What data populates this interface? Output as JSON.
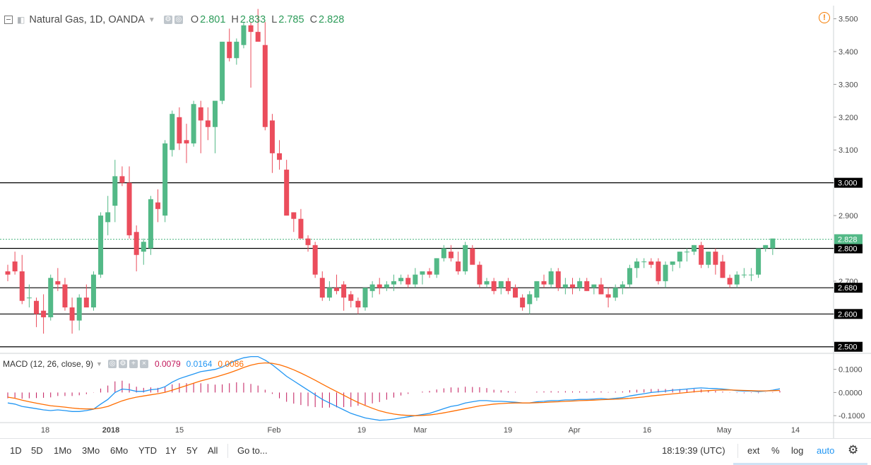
{
  "header": {
    "symbol": "Natural Gas, 1D, OANDA",
    "open_label": "O",
    "open": "2.801",
    "high_label": "H",
    "high": "2.833",
    "low_label": "L",
    "low": "2.785",
    "close_label": "C",
    "close": "2.828"
  },
  "macd": {
    "label": "MACD (12, 26, close, 9)",
    "hist": "0.0079",
    "macd": "0.0164",
    "signal": "0.0086"
  },
  "toolbar": {
    "ranges": [
      "1D",
      "5D",
      "1Mo",
      "3Mo",
      "6Mo",
      "YTD",
      "1Y",
      "5Y",
      "All"
    ],
    "goto": "Go to...",
    "time": "18:19:39 (UTC)",
    "ext": "ext",
    "percent": "%",
    "log": "log",
    "auto": "auto"
  },
  "colors": {
    "up": "#53b987",
    "down": "#eb4d5c",
    "macd_line": "#2196f3",
    "signal_line": "#ff6d00",
    "hist": "#c2185b",
    "auto": "#2196f3"
  },
  "chart_data": [
    {
      "type": "candlestick",
      "title": "Natural Gas, 1D, OANDA",
      "ylim": [
        2.48,
        3.54
      ],
      "y_ticks": [
        "2.500",
        "2.600",
        "2.700",
        "2.800",
        "2.900",
        "3.000",
        "3.100",
        "3.200",
        "3.300",
        "3.400",
        "3.500"
      ],
      "x_ticks": [
        "18",
        "2018",
        "15",
        "Feb",
        "19",
        "Mar",
        "19",
        "Apr",
        "16",
        "May",
        "14"
      ],
      "last_price": "2.828",
      "horizontal_levels": [
        "3.000",
        "2.800",
        "2.680",
        "2.600",
        "2.500"
      ],
      "candles": [
        [
          2.73,
          2.75,
          2.7,
          2.72
        ],
        [
          2.76,
          2.79,
          2.72,
          2.73
        ],
        [
          2.73,
          2.78,
          2.63,
          2.64
        ],
        [
          2.65,
          2.69,
          2.62,
          2.65
        ],
        [
          2.64,
          2.65,
          2.56,
          2.6
        ],
        [
          2.61,
          2.66,
          2.54,
          2.59
        ],
        [
          2.59,
          2.72,
          2.58,
          2.71
        ],
        [
          2.7,
          2.74,
          2.67,
          2.69
        ],
        [
          2.69,
          2.71,
          2.61,
          2.62
        ],
        [
          2.62,
          2.65,
          2.54,
          2.58
        ],
        [
          2.58,
          2.66,
          2.55,
          2.65
        ],
        [
          2.65,
          2.69,
          2.62,
          2.62
        ],
        [
          2.62,
          2.73,
          2.61,
          2.72
        ],
        [
          2.72,
          2.91,
          2.71,
          2.9
        ],
        [
          2.88,
          2.96,
          2.84,
          2.91
        ],
        [
          2.93,
          3.07,
          2.88,
          3.02
        ],
        [
          3.02,
          3.05,
          2.99,
          3.0
        ],
        [
          3.0,
          3.05,
          2.83,
          2.84
        ],
        [
          2.85,
          2.87,
          2.73,
          2.78
        ],
        [
          2.79,
          2.83,
          2.75,
          2.82
        ],
        [
          2.8,
          2.96,
          2.78,
          2.95
        ],
        [
          2.94,
          2.98,
          2.88,
          2.92
        ],
        [
          2.9,
          3.13,
          2.88,
          3.12
        ],
        [
          3.1,
          3.22,
          3.08,
          3.21
        ],
        [
          3.2,
          3.23,
          3.1,
          3.12
        ],
        [
          3.13,
          3.18,
          3.06,
          3.12
        ],
        [
          3.12,
          3.25,
          3.11,
          3.24
        ],
        [
          3.23,
          3.25,
          3.09,
          3.19
        ],
        [
          3.19,
          3.23,
          3.13,
          3.17
        ],
        [
          3.17,
          3.24,
          3.09,
          3.25
        ],
        [
          3.25,
          3.43,
          3.24,
          3.43
        ],
        [
          3.43,
          3.47,
          3.37,
          3.38
        ],
        [
          3.38,
          3.44,
          3.36,
          3.43
        ],
        [
          3.42,
          3.49,
          3.41,
          3.48
        ],
        [
          3.48,
          3.49,
          3.29,
          3.46
        ],
        [
          3.46,
          3.53,
          3.43,
          3.43
        ],
        [
          3.42,
          3.49,
          3.16,
          3.17
        ],
        [
          3.19,
          3.21,
          3.03,
          3.09
        ],
        [
          3.09,
          3.13,
          3.04,
          3.07
        ],
        [
          3.04,
          3.07,
          2.9,
          2.9
        ],
        [
          2.91,
          2.91,
          2.85,
          2.89
        ],
        [
          2.89,
          2.92,
          2.83,
          2.83
        ],
        [
          2.83,
          2.84,
          2.79,
          2.81
        ],
        [
          2.81,
          2.82,
          2.71,
          2.72
        ],
        [
          2.71,
          2.73,
          2.64,
          2.65
        ],
        [
          2.65,
          2.7,
          2.64,
          2.68
        ],
        [
          2.68,
          2.72,
          2.66,
          2.67
        ],
        [
          2.69,
          2.7,
          2.61,
          2.65
        ],
        [
          2.66,
          2.67,
          2.62,
          2.64
        ],
        [
          2.64,
          2.65,
          2.6,
          2.62
        ],
        [
          2.62,
          2.68,
          2.61,
          2.68
        ],
        [
          2.67,
          2.7,
          2.65,
          2.69
        ],
        [
          2.69,
          2.71,
          2.66,
          2.68
        ],
        [
          2.68,
          2.7,
          2.67,
          2.69
        ],
        [
          2.69,
          2.72,
          2.67,
          2.7
        ],
        [
          2.7,
          2.72,
          2.69,
          2.71
        ],
        [
          2.71,
          2.72,
          2.68,
          2.69
        ],
        [
          2.69,
          2.74,
          2.68,
          2.72
        ],
        [
          2.72,
          2.73,
          2.69,
          2.73
        ],
        [
          2.73,
          2.74,
          2.71,
          2.72
        ],
        [
          2.72,
          2.77,
          2.71,
          2.77
        ],
        [
          2.77,
          2.81,
          2.76,
          2.8
        ],
        [
          2.79,
          2.81,
          2.76,
          2.77
        ],
        [
          2.76,
          2.79,
          2.72,
          2.73
        ],
        [
          2.73,
          2.82,
          2.72,
          2.81
        ],
        [
          2.8,
          2.81,
          2.76,
          2.75
        ],
        [
          2.75,
          2.76,
          2.68,
          2.69
        ],
        [
          2.69,
          2.71,
          2.68,
          2.7
        ],
        [
          2.7,
          2.71,
          2.66,
          2.67
        ],
        [
          2.68,
          2.7,
          2.66,
          2.7
        ],
        [
          2.7,
          2.71,
          2.66,
          2.67
        ],
        [
          2.68,
          2.69,
          2.65,
          2.65
        ],
        [
          2.65,
          2.66,
          2.61,
          2.62
        ],
        [
          2.63,
          2.67,
          2.6,
          2.66
        ],
        [
          2.65,
          2.7,
          2.64,
          2.7
        ],
        [
          2.7,
          2.72,
          2.68,
          2.69
        ],
        [
          2.69,
          2.74,
          2.68,
          2.73
        ],
        [
          2.73,
          2.74,
          2.67,
          2.68
        ],
        [
          2.68,
          2.71,
          2.66,
          2.69
        ],
        [
          2.69,
          2.71,
          2.66,
          2.68
        ],
        [
          2.68,
          2.71,
          2.67,
          2.7
        ],
        [
          2.7,
          2.71,
          2.67,
          2.67
        ],
        [
          2.68,
          2.69,
          2.66,
          2.69
        ],
        [
          2.69,
          2.71,
          2.66,
          2.66
        ],
        [
          2.66,
          2.68,
          2.62,
          2.65
        ],
        [
          2.65,
          2.69,
          2.64,
          2.68
        ],
        [
          2.68,
          2.7,
          2.66,
          2.69
        ],
        [
          2.69,
          2.75,
          2.68,
          2.74
        ],
        [
          2.74,
          2.77,
          2.71,
          2.76
        ],
        [
          2.76,
          2.77,
          2.74,
          2.76
        ],
        [
          2.76,
          2.77,
          2.74,
          2.75
        ],
        [
          2.76,
          2.77,
          2.69,
          2.7
        ],
        [
          2.7,
          2.76,
          2.68,
          2.75
        ],
        [
          2.75,
          2.76,
          2.73,
          2.76
        ],
        [
          2.76,
          2.79,
          2.74,
          2.79
        ],
        [
          2.79,
          2.8,
          2.76,
          2.79
        ],
        [
          2.79,
          2.81,
          2.78,
          2.81
        ],
        [
          2.81,
          2.82,
          2.74,
          2.75
        ],
        [
          2.75,
          2.79,
          2.74,
          2.79
        ],
        [
          2.79,
          2.8,
          2.72,
          2.75
        ],
        [
          2.76,
          2.78,
          2.71,
          2.71
        ],
        [
          2.71,
          2.72,
          2.68,
          2.69
        ],
        [
          2.69,
          2.73,
          2.68,
          2.72
        ],
        [
          2.72,
          2.74,
          2.71,
          2.72
        ],
        [
          2.72,
          2.74,
          2.7,
          2.72
        ],
        [
          2.72,
          2.8,
          2.71,
          2.8
        ],
        [
          2.8,
          2.81,
          2.79,
          2.81
        ],
        [
          2.8,
          2.83,
          2.78,
          2.83
        ]
      ]
    },
    {
      "type": "line",
      "title": "MACD (12, 26, close, 9)",
      "ylim": [
        -0.13,
        0.16
      ],
      "y_ticks": [
        "0.1000",
        "0.0000",
        "-0.1000"
      ],
      "series": [
        {
          "name": "MACD",
          "values": [
            -0.045,
            -0.05,
            -0.06,
            -0.065,
            -0.07,
            -0.075,
            -0.078,
            -0.075,
            -0.078,
            -0.082,
            -0.082,
            -0.078,
            -0.072,
            -0.05,
            -0.03,
            0.0,
            0.015,
            0.012,
            0.005,
            0.005,
            0.012,
            0.015,
            0.025,
            0.045,
            0.06,
            0.07,
            0.08,
            0.09,
            0.095,
            0.1,
            0.11,
            0.125,
            0.14,
            0.15,
            0.155,
            0.155,
            0.14,
            0.12,
            0.095,
            0.07,
            0.05,
            0.03,
            0.01,
            -0.01,
            -0.03,
            -0.045,
            -0.06,
            -0.075,
            -0.09,
            -0.1,
            -0.11,
            -0.115,
            -0.12,
            -0.118,
            -0.115,
            -0.11,
            -0.105,
            -0.1,
            -0.095,
            -0.09,
            -0.08,
            -0.07,
            -0.06,
            -0.055,
            -0.045,
            -0.04,
            -0.035,
            -0.035,
            -0.038,
            -0.038,
            -0.04,
            -0.042,
            -0.045,
            -0.045,
            -0.04,
            -0.038,
            -0.035,
            -0.035,
            -0.032,
            -0.032,
            -0.03,
            -0.03,
            -0.028,
            -0.026,
            -0.028,
            -0.025,
            -0.022,
            -0.015,
            -0.01,
            -0.005,
            0.0,
            0.003,
            0.006,
            0.01,
            0.012,
            0.015,
            0.018,
            0.02,
            0.018,
            0.017,
            0.015,
            0.012,
            0.008,
            0.006,
            0.006,
            0.004,
            0.006,
            0.01,
            0.016
          ]
        },
        {
          "name": "Signal",
          "values": [
            -0.02,
            -0.025,
            -0.033,
            -0.04,
            -0.046,
            -0.052,
            -0.057,
            -0.06,
            -0.063,
            -0.067,
            -0.07,
            -0.071,
            -0.071,
            -0.067,
            -0.06,
            -0.048,
            -0.036,
            -0.027,
            -0.02,
            -0.015,
            -0.01,
            -0.005,
            0.001,
            0.01,
            0.02,
            0.03,
            0.04,
            0.05,
            0.058,
            0.066,
            0.075,
            0.085,
            0.096,
            0.108,
            0.118,
            0.125,
            0.128,
            0.126,
            0.12,
            0.11,
            0.098,
            0.084,
            0.069,
            0.053,
            0.036,
            0.02,
            0.004,
            -0.012,
            -0.028,
            -0.043,
            -0.056,
            -0.068,
            -0.079,
            -0.087,
            -0.093,
            -0.097,
            -0.099,
            -0.1,
            -0.099,
            -0.097,
            -0.093,
            -0.088,
            -0.082,
            -0.076,
            -0.07,
            -0.064,
            -0.058,
            -0.054,
            -0.05,
            -0.048,
            -0.046,
            -0.045,
            -0.045,
            -0.045,
            -0.044,
            -0.043,
            -0.041,
            -0.04,
            -0.038,
            -0.037,
            -0.035,
            -0.034,
            -0.033,
            -0.031,
            -0.03,
            -0.029,
            -0.027,
            -0.025,
            -0.022,
            -0.019,
            -0.015,
            -0.012,
            -0.009,
            -0.006,
            -0.003,
            0.0,
            0.003,
            0.006,
            0.008,
            0.01,
            0.011,
            0.011,
            0.01,
            0.009,
            0.008,
            0.007,
            0.007,
            0.008,
            0.009
          ]
        },
        {
          "name": "Histogram",
          "values": [
            -0.025,
            -0.025,
            -0.027,
            -0.025,
            -0.024,
            -0.023,
            -0.021,
            -0.015,
            -0.015,
            -0.015,
            -0.012,
            -0.007,
            -0.001,
            0.017,
            0.03,
            0.048,
            0.051,
            0.039,
            0.025,
            0.02,
            0.022,
            0.02,
            0.024,
            0.035,
            0.04,
            0.04,
            0.04,
            0.04,
            0.037,
            0.034,
            0.035,
            0.04,
            0.044,
            0.042,
            0.037,
            0.03,
            0.012,
            -0.006,
            -0.025,
            -0.04,
            -0.048,
            -0.054,
            -0.059,
            -0.063,
            -0.066,
            -0.065,
            -0.064,
            -0.063,
            -0.062,
            -0.057,
            -0.054,
            -0.047,
            -0.041,
            -0.031,
            -0.022,
            -0.013,
            -0.006,
            0.0,
            0.004,
            0.007,
            0.013,
            0.018,
            0.022,
            0.021,
            0.025,
            0.024,
            0.023,
            0.019,
            0.012,
            0.01,
            0.006,
            0.003,
            0.0,
            0.0,
            0.004,
            0.005,
            0.006,
            0.005,
            0.006,
            0.005,
            0.005,
            0.004,
            0.005,
            0.005,
            0.002,
            0.004,
            0.005,
            0.01,
            0.012,
            0.014,
            0.015,
            0.015,
            0.015,
            0.016,
            0.015,
            0.015,
            0.015,
            0.014,
            0.01,
            0.007,
            0.004,
            0.001,
            -0.002,
            -0.003,
            -0.002,
            -0.003,
            -0.001,
            0.002,
            0.007
          ]
        }
      ]
    }
  ]
}
